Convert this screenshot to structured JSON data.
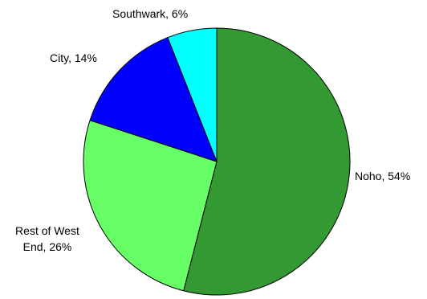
{
  "chart_data": {
    "type": "pie",
    "title": "",
    "start_angle_deg": 0,
    "direction": "clockwise",
    "slices": [
      {
        "label": "Noho",
        "value": 54,
        "value_label": "54%",
        "color": "#339933",
        "label_text": "Noho, 54%",
        "label_lines": [
          "Noho, 54%"
        ]
      },
      {
        "label": "Rest of West End",
        "value": 26,
        "value_label": "26%",
        "color": "#66ff66",
        "label_text": "Rest of West End, 26%",
        "label_lines": [
          "Rest of West",
          "End, 26%"
        ]
      },
      {
        "label": "City",
        "value": 14,
        "value_label": "14%",
        "color": "#0000ff",
        "label_text": "City, 14%",
        "label_lines": [
          "City, 14%"
        ]
      },
      {
        "label": "Southwark",
        "value": 6,
        "value_label": "6%",
        "color": "#00ffff",
        "label_text": "Southwark, 6%",
        "label_lines": [
          "Southwark, 6%"
        ]
      }
    ],
    "legend": "none"
  }
}
